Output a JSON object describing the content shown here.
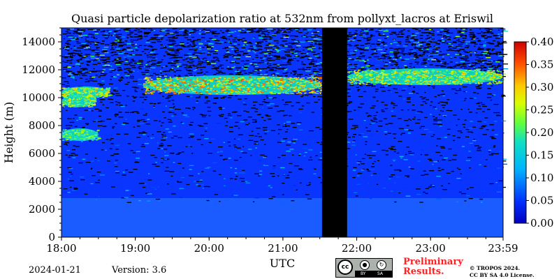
{
  "chart_data": {
    "type": "heatmap",
    "title": "Quasi particle depolarization ratio at 532nm from pollyxt_lacros at Eriswil",
    "xlabel": "UTC",
    "ylabel": "Height (m)",
    "x_ticks": [
      "18:00",
      "19:00",
      "20:00",
      "21:00",
      "22:00",
      "23:00",
      "23:59"
    ],
    "x_tick_hours": [
      18,
      19,
      20,
      21,
      22,
      23,
      23.983
    ],
    "xlim_hours": [
      18,
      23.983
    ],
    "y_ticks": [
      0,
      2000,
      4000,
      6000,
      8000,
      10000,
      12000,
      14000
    ],
    "ylim": [
      0,
      15000
    ],
    "colorbar": {
      "ticks": [
        "0.00",
        "0.05",
        "0.10",
        "0.15",
        "0.20",
        "0.25",
        "0.30",
        "0.35",
        "0.40"
      ],
      "range": [
        0,
        0.4
      ],
      "colormap": "jet"
    },
    "no_data_gap_hours": [
      21.53,
      21.87
    ],
    "features": [
      {
        "desc_layer": "cirrus",
        "x_hours": [
          19.1,
          21.53
        ],
        "base_m": 10200,
        "top_m": 11600,
        "value": 0.35
      },
      {
        "desc_layer": "cirrus",
        "x_hours": [
          21.87,
          23.983
        ],
        "base_m": 10900,
        "top_m": 12100,
        "value": 0.3
      },
      {
        "desc_layer": "cloud",
        "x_hours": [
          18.0,
          18.65
        ],
        "base_m": 10000,
        "top_m": 10800,
        "value": 0.3
      },
      {
        "desc_layer": "cloud",
        "x_hours": [
          18.0,
          18.5
        ],
        "base_m": 6900,
        "top_m": 7800,
        "value": 0.25
      },
      {
        "desc_layer": "cloud",
        "x_hours": [
          18.0,
          18.45
        ],
        "base_m": 9300,
        "top_m": 10200,
        "value": 0.28
      }
    ]
  },
  "footer": {
    "date": "2024-01-21",
    "version": "Version: 3.6",
    "prelim_line1": "Preliminary",
    "prelim_line2": "Results.",
    "copyright_line1": "© TROPOS 2024.",
    "copyright_line2": "CC BY SA 4.0 License.",
    "badge_cc": "cc",
    "badge_by": "BY",
    "badge_sa": "SA"
  }
}
